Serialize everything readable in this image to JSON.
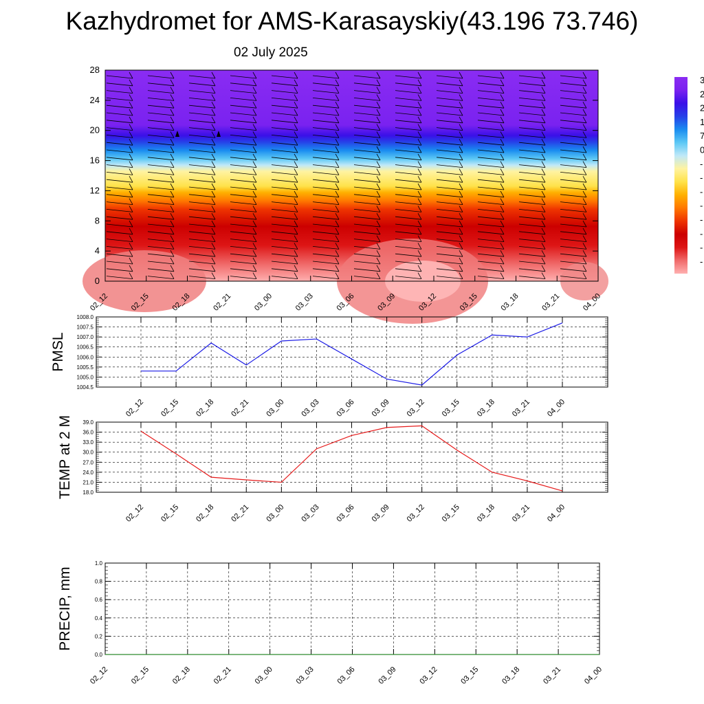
{
  "header": {
    "title": "Kazhydromet for AMS-Karasayskiy(43.196 73.746)",
    "subtitle": "02 July 2025"
  },
  "colorbar": {
    "labels": [
      "3",
      "2",
      "2",
      "1",
      "7",
      "0",
      "-",
      "-",
      "-",
      "-",
      "-",
      "-",
      "-",
      "-"
    ]
  },
  "chart_data": [
    {
      "type": "heatmap",
      "panel": "cross-section",
      "x": [
        "02_12",
        "02_15",
        "02_18",
        "02_21",
        "03_00",
        "03_03",
        "03_06",
        "03_09",
        "03_12",
        "03_15",
        "03_18",
        "03_21",
        "04_00"
      ],
      "yticks": [
        0,
        4,
        8,
        12,
        16,
        20,
        24,
        28
      ],
      "ylim": [
        0,
        28
      ],
      "colors": [
        "#ffb0b0",
        "#f06a6a",
        "#dd1515",
        "#cc0000",
        "#ee3300",
        "#ff7700",
        "#ffb000",
        "#ffe24a",
        "#fff3a0",
        "#bfe8f8",
        "#5cc8f5",
        "#1a8cf0",
        "#2640e8",
        "#3a10e8",
        "#7a22f0",
        "#8a2cf2"
      ]
    },
    {
      "type": "line",
      "panel": "pmsl",
      "ylabel": "PMSL",
      "categories": [
        "02_12",
        "02_15",
        "02_18",
        "02_21",
        "03_00",
        "03_03",
        "03_06",
        "03_09",
        "03_12",
        "03_15",
        "03_18",
        "03_21",
        "04_00"
      ],
      "values": [
        1005.3,
        1005.3,
        1006.7,
        1005.6,
        1006.8,
        1006.9,
        1005.9,
        1004.9,
        1004.6,
        1006.1,
        1007.1,
        1007.0,
        1007.7
      ],
      "yticks": [
        "1004.5",
        "1005.0",
        "1005.5",
        "1006.0",
        "1006.5",
        "1007.0",
        "1007.5",
        "1008.0"
      ],
      "ylim": [
        1004.5,
        1008.0
      ],
      "color": "#1a1ae6"
    },
    {
      "type": "line",
      "panel": "temp",
      "ylabel": "TEMP at 2 M",
      "categories": [
        "02_12",
        "02_15",
        "02_18",
        "02_21",
        "03_00",
        "03_03",
        "03_06",
        "03_09",
        "03_12",
        "03_15",
        "03_18",
        "03_21",
        "04_00"
      ],
      "values": [
        36.3,
        29.5,
        22.5,
        21.7,
        21.0,
        31.0,
        35.0,
        37.4,
        37.9,
        30.6,
        24.0,
        21.4,
        18.4
      ],
      "yticks": [
        "18.0",
        "21.0",
        "24.0",
        "27.0",
        "30.0",
        "33.0",
        "36.0",
        "39.0"
      ],
      "ylim": [
        18.0,
        39.0
      ],
      "color": "#e61a1a"
    },
    {
      "type": "line",
      "panel": "precip",
      "ylabel": "PRECIP, mm",
      "categories": [
        "02_12",
        "02_15",
        "02_18",
        "02_21",
        "03_00",
        "03_03",
        "03_06",
        "03_09",
        "03_12",
        "03_15",
        "03_18",
        "03_21",
        "04_00"
      ],
      "values": [
        0,
        0,
        0,
        0,
        0,
        0,
        0,
        0,
        0,
        0,
        0,
        0,
        0
      ],
      "yticks": [
        "0.0",
        "0.2",
        "0.4",
        "0.6",
        "0.8",
        "1.0"
      ],
      "ylim": [
        0,
        1.0
      ],
      "color": "#2e8b2e"
    }
  ]
}
